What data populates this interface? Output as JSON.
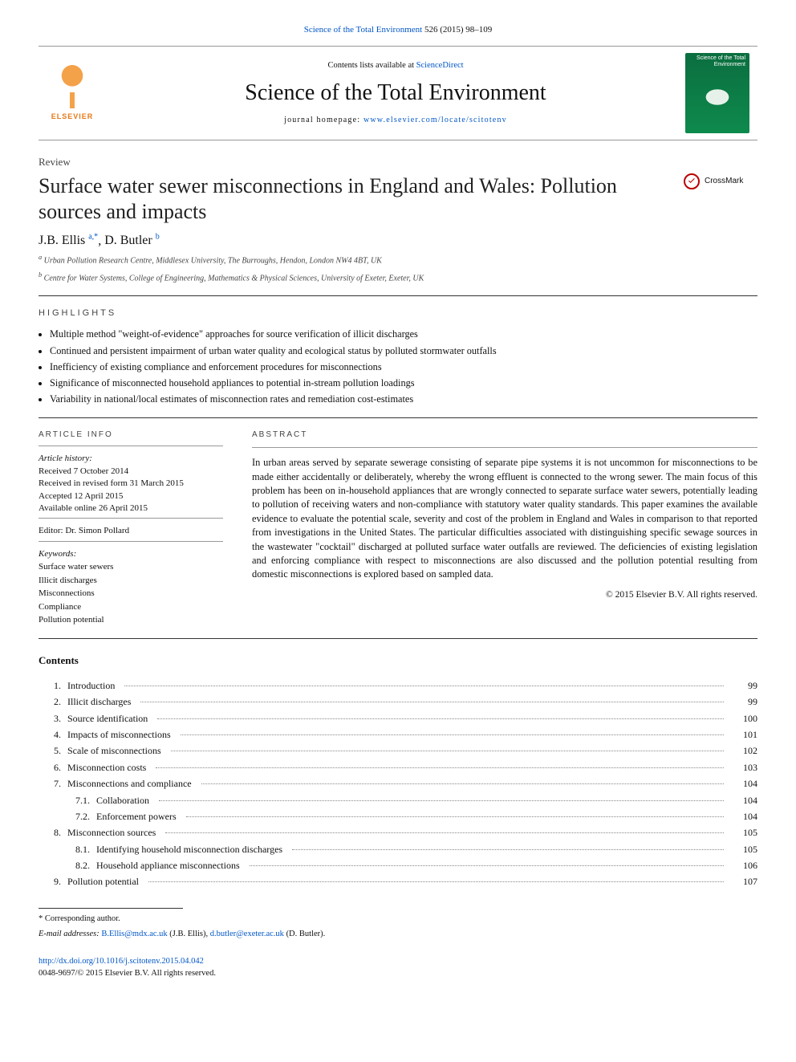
{
  "header": {
    "citation_journal": "Science of the Total Environment",
    "citation_issue": "526 (2015) 98–109",
    "contents_prefix": "Contents lists available at ",
    "contents_link": "ScienceDirect",
    "journal_name": "Science of the Total Environment",
    "homepage_label": "journal homepage: ",
    "homepage_url": "www.elsevier.com/locate/scitotenv",
    "publisher_mark": "ELSEVIER",
    "cover_label": "Science of the Total Environment"
  },
  "article": {
    "type": "Review",
    "title": "Surface water sewer misconnections in England and Wales: Pollution sources and impacts",
    "crossmark_label": "CrossMark",
    "authors": [
      {
        "name": "J.B. Ellis",
        "mark": "a,*"
      },
      {
        "name": "D. Butler",
        "mark": "b"
      }
    ],
    "affiliations": [
      {
        "mark": "a",
        "text": "Urban Pollution Research Centre, Middlesex University, The Burroughs, Hendon, London NW4 4BT, UK"
      },
      {
        "mark": "b",
        "text": "Centre for Water Systems, College of Engineering, Mathematics & Physical Sciences, University of Exeter, Exeter, UK"
      }
    ]
  },
  "highlights": {
    "heading": "HIGHLIGHTS",
    "items": [
      "Multiple method \"weight-of-evidence\" approaches for source verification of illicit discharges",
      "Continued and persistent impairment of urban water quality and ecological status by polluted stormwater outfalls",
      "Inefficiency of existing compliance and enforcement procedures for misconnections",
      "Significance of misconnected household appliances to potential in-stream pollution loadings",
      "Variability in national/local estimates of misconnection rates and remediation cost-estimates"
    ]
  },
  "article_info": {
    "heading": "ARTICLE INFO",
    "history_label": "Article history:",
    "history": [
      "Received 7 October 2014",
      "Received in revised form 31 March 2015",
      "Accepted 12 April 2015",
      "Available online 26 April 2015"
    ],
    "editor_label": "Editor: ",
    "editor": "Dr. Simon Pollard",
    "keywords_label": "Keywords:",
    "keywords": [
      "Surface water sewers",
      "Illicit discharges",
      "Misconnections",
      "Compliance",
      "Pollution potential"
    ]
  },
  "abstract": {
    "heading": "ABSTRACT",
    "text": "In urban areas served by separate sewerage consisting of separate pipe systems it is not uncommon for misconnections to be made either accidentally or deliberately, whereby the wrong effluent is connected to the wrong sewer. The main focus of this problem has been on in-household appliances that are wrongly connected to separate surface water sewers, potentially leading to pollution of receiving waters and non-compliance with statutory water quality standards. This paper examines the available evidence to evaluate the potential scale, severity and cost of the problem in England and Wales in comparison to that reported from investigations in the United States. The particular difficulties associated with distinguishing specific sewage sources in the wastewater \"cocktail\" discharged at polluted surface water outfalls are reviewed. The deficiencies of existing legislation and enforcing compliance with respect to misconnections are also discussed and the pollution potential resulting from domestic misconnections is explored based on sampled data.",
    "copyright": "© 2015 Elsevier B.V. All rights reserved."
  },
  "contents": {
    "heading": "Contents",
    "items": [
      {
        "num": "1.",
        "title": "Introduction",
        "page": "99",
        "level": 0
      },
      {
        "num": "2.",
        "title": "Illicit discharges",
        "page": "99",
        "level": 0
      },
      {
        "num": "3.",
        "title": "Source identification",
        "page": "100",
        "level": 0
      },
      {
        "num": "4.",
        "title": "Impacts of misconnections",
        "page": "101",
        "level": 0
      },
      {
        "num": "5.",
        "title": "Scale of misconnections",
        "page": "102",
        "level": 0
      },
      {
        "num": "6.",
        "title": "Misconnection costs",
        "page": "103",
        "level": 0
      },
      {
        "num": "7.",
        "title": "Misconnections and compliance",
        "page": "104",
        "level": 0
      },
      {
        "num": "7.1.",
        "title": "Collaboration",
        "page": "104",
        "level": 1
      },
      {
        "num": "7.2.",
        "title": "Enforcement powers",
        "page": "104",
        "level": 1
      },
      {
        "num": "8.",
        "title": "Misconnection sources",
        "page": "105",
        "level": 0
      },
      {
        "num": "8.1.",
        "title": "Identifying household misconnection discharges",
        "page": "105",
        "level": 1
      },
      {
        "num": "8.2.",
        "title": "Household appliance misconnections",
        "page": "106",
        "level": 1
      },
      {
        "num": "9.",
        "title": "Pollution potential",
        "page": "107",
        "level": 0
      }
    ]
  },
  "footnotes": {
    "corresponding": "* Corresponding author.",
    "email_label": "E-mail addresses: ",
    "emails": [
      {
        "addr": "B.Ellis@mdx.ac.uk",
        "who": "(J.B. Ellis)"
      },
      {
        "addr": "d.butler@exeter.ac.uk",
        "who": "(D. Butler)"
      }
    ],
    "email_sep": ", ",
    "email_end": "."
  },
  "doi": {
    "url": "http://dx.doi.org/10.1016/j.scitotenv.2015.04.042",
    "issn_line": "0048-9697/© 2015 Elsevier B.V. All rights reserved."
  },
  "colors": {
    "link": "#0056c7",
    "rule": "#333333",
    "text": "#111111"
  },
  "typography": {
    "body_font": "Times New Roman",
    "body_size_pt": 9,
    "title_size_pt": 20,
    "journal_name_size_pt": 21
  }
}
